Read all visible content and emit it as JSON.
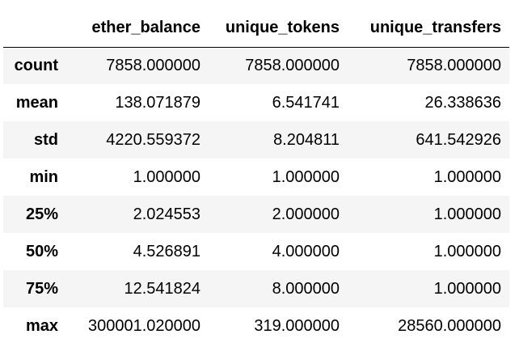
{
  "table": {
    "index_header": "",
    "columns": [
      "ether_balance",
      "unique_tokens",
      "unique_transfers"
    ],
    "rows": [
      {
        "label": "count",
        "values": [
          "7858.000000",
          "7858.000000",
          "7858.000000"
        ]
      },
      {
        "label": "mean",
        "values": [
          "138.071879",
          "6.541741",
          "26.338636"
        ]
      },
      {
        "label": "std",
        "values": [
          "4220.559372",
          "8.204811",
          "641.542926"
        ]
      },
      {
        "label": "min",
        "values": [
          "1.000000",
          "1.000000",
          "1.000000"
        ]
      },
      {
        "label": "25%",
        "values": [
          "2.024553",
          "2.000000",
          "1.000000"
        ]
      },
      {
        "label": "50%",
        "values": [
          "4.526891",
          "4.000000",
          "1.000000"
        ]
      },
      {
        "label": "75%",
        "values": [
          "12.541824",
          "8.000000",
          "1.000000"
        ]
      },
      {
        "label": "max",
        "values": [
          "300001.020000",
          "319.000000",
          "28560.000000"
        ]
      }
    ]
  }
}
